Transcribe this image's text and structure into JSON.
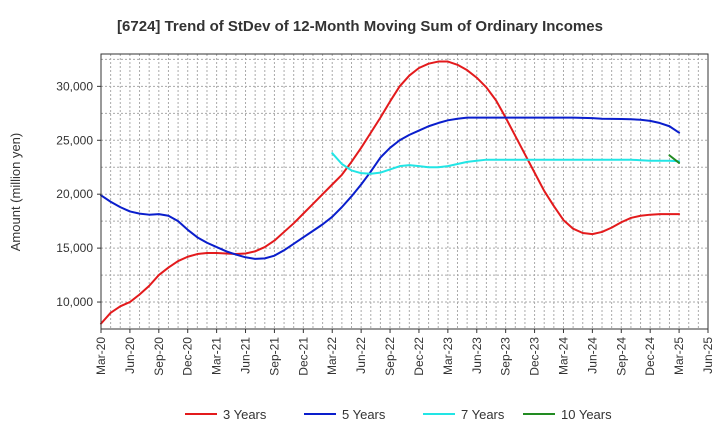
{
  "chart_data": {
    "type": "line",
    "title": "[6724]  Trend of StDev of 12-Month Moving Sum of Ordinary Incomes",
    "xlabel": "",
    "ylabel": "Amount (million yen)",
    "ylim": [
      7500,
      33000
    ],
    "yticks": [
      10000,
      15000,
      20000,
      25000,
      30000
    ],
    "ytick_labels": [
      "10,000",
      "15,000",
      "20,000",
      "25,000",
      "30,000"
    ],
    "x_start": "Mar-20",
    "x_months_total": 63,
    "xtick_labels": [
      "Mar-20",
      "Jun-20",
      "Sep-20",
      "Dec-20",
      "Mar-21",
      "Jun-21",
      "Sep-21",
      "Dec-21",
      "Mar-22",
      "Jun-22",
      "Sep-22",
      "Dec-22",
      "Mar-23",
      "Jun-23",
      "Sep-23",
      "Dec-23",
      "Mar-24",
      "Jun-24",
      "Sep-24",
      "Dec-24",
      "Mar-25",
      "Jun-25"
    ],
    "grid": true,
    "legend_position": "bottom",
    "series": [
      {
        "name": "3 Years",
        "color": "#e31a1c",
        "start": 0,
        "values": [
          8000,
          9000,
          9600,
          10000,
          10700,
          11500,
          12500,
          13200,
          13800,
          14200,
          14450,
          14550,
          14550,
          14500,
          14450,
          14500,
          14700,
          15100,
          15700,
          16500,
          17300,
          18200,
          19100,
          20000,
          20900,
          21800,
          23000,
          24300,
          25700,
          27100,
          28600,
          30000,
          31000,
          31700,
          32100,
          32300,
          32300,
          32000,
          31500,
          30800,
          29900,
          28700,
          27100,
          25400,
          23700,
          22000,
          20300,
          18900,
          17600,
          16800,
          16400,
          16300,
          16500,
          16900,
          17400,
          17800,
          18000,
          18100,
          18150,
          18150,
          18150
        ]
      },
      {
        "name": "5 Years",
        "color": "#0a1ecc",
        "start": 0,
        "values": [
          19900,
          19300,
          18800,
          18400,
          18200,
          18100,
          18150,
          18000,
          17500,
          16700,
          16000,
          15500,
          15100,
          14700,
          14400,
          14150,
          14000,
          14050,
          14300,
          14800,
          15400,
          16000,
          16600,
          17200,
          17900,
          18800,
          19800,
          20900,
          22100,
          23400,
          24300,
          25000,
          25500,
          25900,
          26300,
          26600,
          26850,
          27000,
          27100,
          27100,
          27100,
          27100,
          27100,
          27100,
          27100,
          27100,
          27100,
          27100,
          27100,
          27100,
          27080,
          27050,
          27000,
          26980,
          26970,
          26950,
          26900,
          26800,
          26600,
          26300,
          25700
        ]
      },
      {
        "name": "7 Years",
        "color": "#22e5e5",
        "start": 24,
        "values": [
          23800,
          22800,
          22200,
          21950,
          21900,
          22000,
          22300,
          22600,
          22700,
          22600,
          22500,
          22500,
          22600,
          22800,
          23000,
          23100,
          23200,
          23200,
          23200,
          23200,
          23200,
          23200,
          23200,
          23200,
          23200,
          23200,
          23200,
          23200,
          23200,
          23200,
          23200,
          23200,
          23150,
          23100,
          23100,
          23100,
          23050
        ]
      },
      {
        "name": "10 Years",
        "color": "#228b22",
        "start": 59,
        "values": [
          23600,
          22900
        ]
      }
    ]
  }
}
